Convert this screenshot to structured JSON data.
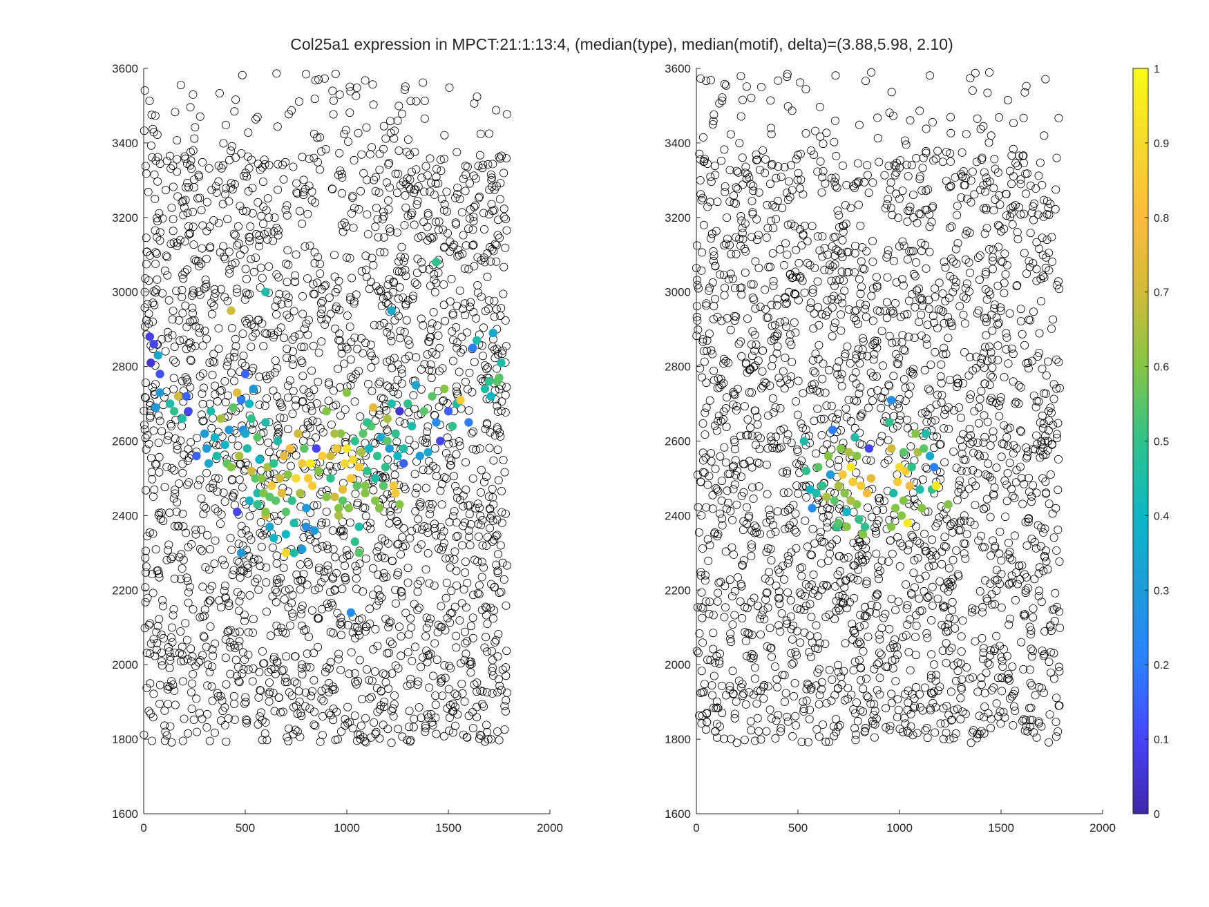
{
  "chart_data": {
    "type": "scatter",
    "title": "Col25a1 expression in MPCT:21:1:13:4, (median(type), median(motif), delta)=(3.88,5.98, 2.10)",
    "panels": [
      {
        "name": "left",
        "xlim": [
          0,
          2000
        ],
        "ylim": [
          1600,
          3600
        ],
        "xticks": [
          0,
          500,
          1000,
          1500,
          2000
        ],
        "yticks": [
          1600,
          1800,
          2000,
          2200,
          2400,
          2600,
          2800,
          3000,
          3200,
          3400,
          3600
        ],
        "background_region": {
          "x_range": [
            0,
            1790
          ],
          "y_range": [
            1790,
            3590
          ],
          "marker": "open-circle",
          "color": "#000000"
        },
        "colored_points": [
          [
            30,
            2880,
            0.08
          ],
          [
            50,
            2860,
            0.1
          ],
          [
            70,
            2830,
            0.35
          ],
          [
            35,
            2810,
            0.05
          ],
          [
            80,
            2780,
            0.12
          ],
          [
            80,
            2730,
            0.3
          ],
          [
            60,
            2690,
            0.3
          ],
          [
            130,
            2700,
            0.45
          ],
          [
            150,
            2680,
            0.5
          ],
          [
            170,
            2720,
            0.7
          ],
          [
            190,
            2660,
            0.45
          ],
          [
            210,
            2720,
            0.15
          ],
          [
            220,
            2680,
            0.1
          ],
          [
            260,
            2560,
            0.15
          ],
          [
            300,
            2620,
            0.3
          ],
          [
            310,
            2580,
            0.3
          ],
          [
            320,
            2540,
            0.35
          ],
          [
            330,
            2680,
            0.45
          ],
          [
            350,
            2610,
            0.4
          ],
          [
            360,
            2560,
            0.45
          ],
          [
            380,
            2660,
            0.65
          ],
          [
            400,
            2590,
            0.4
          ],
          [
            410,
            2540,
            0.55
          ],
          [
            420,
            2630,
            0.3
          ],
          [
            430,
            2530,
            0.6
          ],
          [
            430,
            2950,
            0.7
          ],
          [
            440,
            2690,
            0.55
          ],
          [
            460,
            2730,
            0.75
          ],
          [
            470,
            2560,
            0.65
          ],
          [
            480,
            2710,
            0.2
          ],
          [
            490,
            2630,
            0.25
          ],
          [
            500,
            2780,
            0.15
          ],
          [
            500,
            2620,
            0.35
          ],
          [
            510,
            2580,
            0.45
          ],
          [
            520,
            2700,
            0.4
          ],
          [
            530,
            2660,
            0.5
          ],
          [
            530,
            2520,
            0.7
          ],
          [
            540,
            2740,
            0.3
          ],
          [
            550,
            2500,
            0.55
          ],
          [
            560,
            2460,
            0.45
          ],
          [
            560,
            2610,
            0.55
          ],
          [
            570,
            2550,
            0.4
          ],
          [
            580,
            2500,
            0.6
          ],
          [
            590,
            2460,
            0.6
          ],
          [
            600,
            2400,
            0.7
          ],
          [
            600,
            3000,
            0.45
          ],
          [
            600,
            2650,
            0.45
          ],
          [
            610,
            2530,
            0.65
          ],
          [
            620,
            2370,
            0.35
          ],
          [
            630,
            2480,
            0.85
          ],
          [
            640,
            2540,
            0.5
          ],
          [
            650,
            2440,
            0.55
          ],
          [
            660,
            2600,
            0.45
          ],
          [
            670,
            2500,
            0.7
          ],
          [
            680,
            2460,
            0.75
          ],
          [
            690,
            2560,
            0.75
          ],
          [
            700,
            2410,
            0.55
          ],
          [
            700,
            2350,
            0.4
          ],
          [
            710,
            2510,
            0.6
          ],
          [
            720,
            2580,
            0.8
          ],
          [
            730,
            2440,
            0.5
          ],
          [
            740,
            2380,
            0.45
          ],
          [
            750,
            2500,
            0.9
          ],
          [
            760,
            2620,
            0.7
          ],
          [
            770,
            2460,
            0.65
          ],
          [
            780,
            2540,
            0.85
          ],
          [
            790,
            2580,
            0.55
          ],
          [
            800,
            2420,
            0.3
          ],
          [
            800,
            2370,
            0.25
          ],
          [
            810,
            2500,
            0.85
          ],
          [
            820,
            2540,
            0.95
          ],
          [
            830,
            2480,
            0.85
          ],
          [
            840,
            2360,
            0.3
          ],
          [
            850,
            2580,
            0.1
          ],
          [
            860,
            2520,
            0.6
          ],
          [
            700,
            2300,
            0.9
          ],
          [
            740,
            2300,
            0.45
          ],
          [
            780,
            2310,
            0.3
          ],
          [
            640,
            2340,
            0.4
          ],
          [
            600,
            2410,
            0.6
          ],
          [
            480,
            2300,
            0.3
          ],
          [
            460,
            2410,
            0.1
          ],
          [
            560,
            2430,
            0.5
          ],
          [
            520,
            2440,
            0.4
          ],
          [
            620,
            2450,
            0.55
          ],
          [
            900,
            2680,
            0.6
          ],
          [
            920,
            2500,
            0.5
          ],
          [
            940,
            2450,
            0.7
          ],
          [
            950,
            2580,
            0.85
          ],
          [
            960,
            2400,
            0.65
          ],
          [
            970,
            2620,
            0.6
          ],
          [
            980,
            2470,
            0.75
          ],
          [
            990,
            2540,
            0.9
          ],
          [
            1000,
            2580,
            0.95
          ],
          [
            1010,
            2420,
            0.6
          ],
          [
            1020,
            2500,
            0.85
          ],
          [
            1030,
            2550,
            0.9
          ],
          [
            1040,
            2600,
            0.5
          ],
          [
            1050,
            2480,
            0.55
          ],
          [
            1060,
            2530,
            0.85
          ],
          [
            1070,
            2570,
            0.65
          ],
          [
            1080,
            2620,
            0.55
          ],
          [
            1090,
            2460,
            0.6
          ],
          [
            1100,
            2520,
            0.5
          ],
          [
            1110,
            2580,
            0.4
          ],
          [
            1120,
            2640,
            0.55
          ],
          [
            1130,
            2690,
            0.75
          ],
          [
            1140,
            2500,
            0.45
          ],
          [
            1150,
            2560,
            0.5
          ],
          [
            1160,
            2420,
            0.6
          ],
          [
            1170,
            2610,
            0.35
          ],
          [
            1180,
            2480,
            0.55
          ],
          [
            1190,
            2530,
            0.5
          ],
          [
            1200,
            2660,
            0.65
          ],
          [
            1210,
            2580,
            0.3
          ],
          [
            1220,
            2700,
            0.45
          ],
          [
            1230,
            2480,
            0.85
          ],
          [
            1240,
            2620,
            0.5
          ],
          [
            1250,
            2560,
            0.4
          ],
          [
            1260,
            2680,
            0.05
          ],
          [
            1280,
            2540,
            0.15
          ],
          [
            1300,
            2700,
            0.5
          ],
          [
            1320,
            2640,
            0.45
          ],
          [
            1340,
            2750,
            0.35
          ],
          [
            1360,
            2560,
            0.3
          ],
          [
            1380,
            2680,
            0.55
          ],
          [
            1400,
            2570,
            0.35
          ],
          [
            1420,
            2720,
            0.55
          ],
          [
            1440,
            2650,
            0.25
          ],
          [
            1460,
            2600,
            0.1
          ],
          [
            1480,
            2740,
            0.6
          ],
          [
            1500,
            2680,
            0.15
          ],
          [
            1520,
            2640,
            0.5
          ],
          [
            1540,
            2700,
            0.45
          ],
          [
            1560,
            2710,
            0.85
          ],
          [
            1600,
            2650,
            0.2
          ],
          [
            1620,
            2850,
            0.2
          ],
          [
            1640,
            2870,
            0.45
          ],
          [
            1680,
            2740,
            0.45
          ],
          [
            1700,
            2760,
            0.5
          ],
          [
            1720,
            2890,
            0.35
          ],
          [
            1740,
            2760,
            0.55
          ],
          [
            1760,
            2810,
            0.45
          ],
          [
            1750,
            2770,
            0.55
          ],
          [
            1710,
            2720,
            0.4
          ],
          [
            1220,
            2950,
            0.35
          ],
          [
            1440,
            3080,
            0.5
          ],
          [
            1020,
            2140,
            0.25
          ],
          [
            1060,
            2300,
            0.55
          ],
          [
            1040,
            2330,
            0.5
          ],
          [
            1060,
            2370,
            0.45
          ],
          [
            1090,
            2480,
            0.6
          ],
          [
            960,
            2420,
            0.6
          ],
          [
            980,
            2440,
            0.55
          ],
          [
            1000,
            2730,
            0.6
          ],
          [
            1240,
            2460,
            0.85
          ],
          [
            1260,
            2430,
            0.6
          ],
          [
            1140,
            2440,
            0.6
          ],
          [
            1200,
            2600,
            0.55
          ],
          [
            1280,
            2580,
            0.45
          ],
          [
            900,
            2450,
            0.6
          ],
          [
            880,
            2560,
            0.85
          ],
          [
            920,
            2560,
            0.7
          ],
          [
            940,
            2620,
            0.65
          ],
          [
            1100,
            2650,
            0.5
          ]
        ]
      },
      {
        "name": "right",
        "xlim": [
          0,
          2000
        ],
        "ylim": [
          1600,
          3600
        ],
        "xticks": [
          0,
          500,
          1000,
          1500,
          2000
        ],
        "yticks": [
          1600,
          1800,
          2000,
          2200,
          2400,
          2600,
          2800,
          3000,
          3200,
          3400,
          3600
        ],
        "background_region": {
          "x_range": [
            0,
            1790
          ],
          "y_range": [
            1790,
            3590
          ],
          "marker": "open-circle",
          "color": "#000000"
        },
        "colored_points": [
          [
            530,
            2600,
            0.45
          ],
          [
            540,
            2520,
            0.5
          ],
          [
            560,
            2470,
            0.4
          ],
          [
            570,
            2420,
            0.25
          ],
          [
            590,
            2460,
            0.45
          ],
          [
            600,
            2530,
            0.55
          ],
          [
            620,
            2480,
            0.5
          ],
          [
            640,
            2450,
            0.65
          ],
          [
            650,
            2560,
            0.6
          ],
          [
            660,
            2510,
            0.3
          ],
          [
            670,
            2630,
            0.2
          ],
          [
            680,
            2440,
            0.55
          ],
          [
            690,
            2370,
            0.5
          ],
          [
            700,
            2480,
            0.65
          ],
          [
            710,
            2580,
            0.6
          ],
          [
            720,
            2510,
            0.85
          ],
          [
            730,
            2460,
            0.6
          ],
          [
            740,
            2410,
            0.4
          ],
          [
            750,
            2570,
            0.65
          ],
          [
            760,
            2530,
            0.95
          ],
          [
            770,
            2490,
            0.85
          ],
          [
            780,
            2610,
            0.45
          ],
          [
            790,
            2430,
            0.6
          ],
          [
            800,
            2390,
            0.5
          ],
          [
            810,
            2480,
            0.85
          ],
          [
            820,
            2350,
            0.6
          ],
          [
            830,
            2370,
            0.5
          ],
          [
            840,
            2460,
            0.8
          ],
          [
            850,
            2580,
            0.1
          ],
          [
            860,
            2500,
            0.75
          ],
          [
            950,
            2650,
            0.5
          ],
          [
            960,
            2710,
            0.25
          ],
          [
            960,
            2580,
            0.7
          ],
          [
            970,
            2460,
            0.45
          ],
          [
            980,
            2420,
            0.6
          ],
          [
            990,
            2490,
            0.85
          ],
          [
            1000,
            2530,
            0.9
          ],
          [
            1010,
            2400,
            0.6
          ],
          [
            1020,
            2570,
            0.55
          ],
          [
            1030,
            2520,
            0.85
          ],
          [
            1040,
            2380,
            0.95
          ],
          [
            1050,
            2480,
            0.8
          ],
          [
            1060,
            2530,
            0.5
          ],
          [
            1080,
            2620,
            0.6
          ],
          [
            1090,
            2570,
            0.65
          ],
          [
            1100,
            2470,
            0.45
          ],
          [
            1110,
            2420,
            0.6
          ],
          [
            1120,
            2580,
            0.55
          ],
          [
            1130,
            2620,
            0.45
          ],
          [
            1150,
            2560,
            0.35
          ],
          [
            1160,
            2470,
            0.5
          ],
          [
            1180,
            2480,
            0.95
          ],
          [
            1170,
            2530,
            0.2
          ],
          [
            1240,
            2430,
            0.6
          ],
          [
            960,
            2370,
            0.6
          ],
          [
            700,
            2380,
            0.55
          ],
          [
            740,
            2370,
            0.6
          ],
          [
            760,
            2440,
            0.65
          ],
          [
            790,
            2560,
            0.6
          ],
          [
            1020,
            2440,
            0.6
          ]
        ]
      }
    ],
    "colorbar": {
      "range": [
        0,
        1
      ],
      "ticks": [
        "0",
        "0.1",
        "0.2",
        "0.3",
        "0.4",
        "0.5",
        "0.6",
        "0.7",
        "0.8",
        "0.9",
        "1"
      ],
      "colormap": "parula",
      "colors": [
        "#3e26a8",
        "#4743f6",
        "#2c7ffe",
        "#1e9ad9",
        "#0eb6c5",
        "#2ec28a",
        "#85c546",
        "#d1bb3a",
        "#fbbb3d",
        "#f6d92e",
        "#f9fb15"
      ]
    },
    "grid": false,
    "legend": "none"
  }
}
